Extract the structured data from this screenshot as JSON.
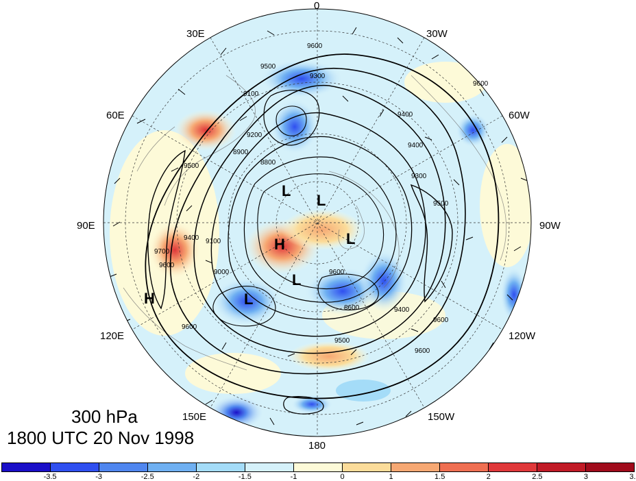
{
  "title": {
    "level": "300 hPa",
    "datetime": "1800 UTC 20 Nov 1998"
  },
  "longitude_labels": [
    {
      "id": "lon-0",
      "text": "0"
    },
    {
      "id": "lon-30w",
      "text": "30W"
    },
    {
      "id": "lon-60w",
      "text": "60W"
    },
    {
      "id": "lon-90w",
      "text": "90W"
    },
    {
      "id": "lon-120w",
      "text": "120W"
    },
    {
      "id": "lon-150w",
      "text": "150W"
    },
    {
      "id": "lon-180",
      "text": "180"
    },
    {
      "id": "lon-150e",
      "text": "150E"
    },
    {
      "id": "lon-120e",
      "text": "120E"
    },
    {
      "id": "lon-90e",
      "text": "90E"
    },
    {
      "id": "lon-60e",
      "text": "60E"
    },
    {
      "id": "lon-30e",
      "text": "30E"
    }
  ],
  "pressure_systems": [
    {
      "id": "low-1",
      "text": "L"
    },
    {
      "id": "low-2",
      "text": "L"
    },
    {
      "id": "low-3",
      "text": "L"
    },
    {
      "id": "low-4",
      "text": "L"
    },
    {
      "id": "low-5",
      "text": "L"
    },
    {
      "id": "high-center",
      "text": "H"
    },
    {
      "id": "high-west",
      "text": "H"
    }
  ],
  "contour_labels": [
    "9600",
    "9500",
    "9300",
    "9100",
    "9400",
    "9200",
    "8900",
    "8800",
    "9400",
    "9300",
    "9500",
    "9600",
    "9500",
    "9400",
    "9600",
    "9600",
    "9500",
    "9600",
    "9400",
    "9600",
    "8600",
    "9100",
    "9000",
    "9700",
    "9600"
  ],
  "colorbar": {
    "colors": [
      "#1a0fc8",
      "#2f4ff0",
      "#4f86ef",
      "#6fb0f2",
      "#a4dcf8",
      "#d5f1fa",
      "#fdfad8",
      "#fbdc9a",
      "#f6a873",
      "#ef6f52",
      "#e0383a",
      "#c11a26",
      "#a00b1b"
    ],
    "tick_labels": [
      "-3.5",
      "-3",
      "-2.5",
      "-2",
      "-1.5",
      "-1",
      "0",
      "1",
      "1.5",
      "2",
      "2.5",
      "3",
      "3.5"
    ]
  }
}
